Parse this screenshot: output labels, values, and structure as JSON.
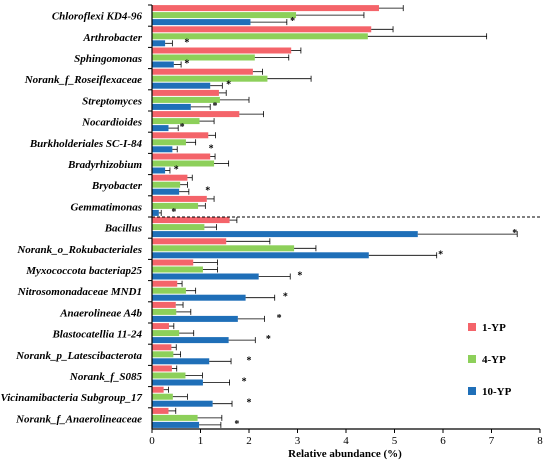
{
  "chart_data": {
    "type": "bar",
    "orientation": "horizontal",
    "xlabel": "Relative abundance  (%)",
    "xlim": [
      0,
      8
    ],
    "xticks": [
      "0",
      "1",
      "2",
      "3",
      "4",
      "5",
      "6",
      "7",
      "8"
    ],
    "legend_position": "right",
    "categories": [
      "Chloroflexi KD4-96",
      "Arthrobacter",
      "Sphingomonas",
      "Norank_f_Roseiflexaceae",
      "Streptomyces",
      "Nocardioides",
      "Burkholderiales SC-I-84",
      "Bradyrhizobium",
      "Bryobacter",
      "Gemmatimonas",
      "Bacillus",
      "Norank_o_Rokubacteriales",
      "Myxococcota bacteriap25",
      "Nitrosomonadaceae MND1",
      "Anaerolineae A4b",
      "Blastocatellia 11-24",
      "Norank_p_Latescibacterota",
      "Norank_f_S085",
      "Vicinamibacteria Subgroup_17",
      "Norank_f_Anaerolineaceae"
    ],
    "series": [
      {
        "name": "1-YP",
        "color": "#f4646a",
        "values": [
          4.68,
          4.52,
          2.87,
          2.08,
          1.38,
          1.8,
          1.16,
          1.2,
          0.73,
          1.13,
          1.6,
          1.53,
          0.85,
          0.52,
          0.49,
          0.35,
          0.4,
          0.41,
          0.24,
          0.34
        ],
        "errors": [
          0.5,
          0.45,
          0.2,
          0.2,
          0.15,
          0.5,
          0.15,
          0.1,
          0.1,
          0.15,
          0.15,
          0.9,
          0.5,
          0.1,
          0.15,
          0.1,
          0.1,
          0.1,
          0.1,
          0.15
        ]
      },
      {
        "name": "4-YP",
        "color": "#8dd05a",
        "values": [
          2.97,
          4.45,
          2.12,
          2.38,
          1.4,
          0.98,
          0.7,
          1.28,
          0.58,
          0.95,
          1.08,
          2.93,
          1.05,
          0.7,
          0.5,
          0.56,
          0.44,
          0.69,
          0.43,
          0.94
        ],
        "errors": [
          1.4,
          2.45,
          0.7,
          0.9,
          0.6,
          0.3,
          0.2,
          0.3,
          0.15,
          0.15,
          0.25,
          0.45,
          0.3,
          0.2,
          0.3,
          0.3,
          0.15,
          0.35,
          0.3,
          0.5
        ]
      },
      {
        "name": "10-YP",
        "color": "#1f6fb8",
        "values": [
          2.03,
          0.27,
          0.45,
          1.2,
          0.8,
          0.34,
          0.42,
          0.27,
          0.56,
          0.14,
          5.48,
          4.47,
          2.2,
          1.93,
          1.77,
          1.58,
          1.18,
          1.05,
          1.25,
          0.97
        ],
        "errors": [
          0.75,
          0.15,
          0.15,
          0.25,
          0.4,
          0.2,
          0.1,
          0.1,
          0.2,
          0.05,
          2.05,
          1.4,
          0.65,
          0.6,
          0.55,
          0.55,
          0.45,
          0.55,
          0.4,
          0.45
        ]
      }
    ],
    "annotations": [
      {
        "category": "Chloroflexi KD4-96",
        "text": "*",
        "x": 2.9
      },
      {
        "category": "Arthrobacter",
        "text": "*",
        "x": 0.72
      },
      {
        "category": "Sphingomonas",
        "text": "*",
        "x": 0.72
      },
      {
        "category": "Norank_f_Roseiflexaceae",
        "text": "*",
        "x": 1.58
      },
      {
        "category": "Streptomyces",
        "text": "*",
        "x": 1.3
      },
      {
        "category": "Nocardioides",
        "text": "*",
        "x": 0.62
      },
      {
        "category": "Burkholderiales SC-I-84",
        "text": "*",
        "x": 1.22
      },
      {
        "category": "Bradyrhizobium",
        "text": "*",
        "x": 0.5
      },
      {
        "category": "Bryobacter",
        "text": "*",
        "x": 1.15
      },
      {
        "category": "Gemmatimonas",
        "text": "*",
        "x": 0.45
      },
      {
        "category": "Bacillus",
        "text": "*",
        "x": 7.48
      },
      {
        "category": "Norank_o_Rokubacteriales",
        "text": "*",
        "x": 5.95
      },
      {
        "category": "Myxococcota bacteriap25",
        "text": "*",
        "x": 3.05
      },
      {
        "category": "Nitrosomonadaceae MND1",
        "text": "*",
        "x": 2.75
      },
      {
        "category": "Anaerolineae A4b",
        "text": "*",
        "x": 2.62
      },
      {
        "category": "Blastocatellia 11-24",
        "text": "*",
        "x": 2.4
      },
      {
        "category": "Norank_p_Latescibacterota",
        "text": "*",
        "x": 2.0
      },
      {
        "category": "Norank_f_S085",
        "text": "*",
        "x": 1.9
      },
      {
        "category": "Vicinamibacteria Subgroup_17",
        "text": "*",
        "x": 2.0
      },
      {
        "category": "Norank_f_Anaerolineaceae",
        "text": "*",
        "x": 1.75
      }
    ],
    "separator_after_category": "Gemmatimonas",
    "grid": false
  }
}
